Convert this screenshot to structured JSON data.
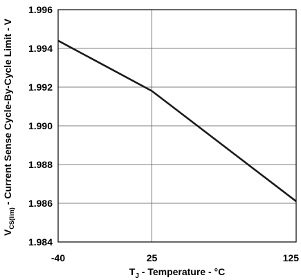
{
  "chart_data": {
    "type": "line",
    "xlabel": {
      "main": "T",
      "sub": "J",
      "rest": " - Temperature - °C"
    },
    "ylabel": {
      "main": "V",
      "sub": "CS(lim)",
      "rest": " - Current Sense Cycle-By-Cycle Limit - V"
    },
    "xlim": [
      -40,
      125
    ],
    "ylim": [
      1.984,
      1.996
    ],
    "x_ticks": [
      -40,
      25,
      125
    ],
    "x_tick_labels": [
      "-40",
      "25",
      "125"
    ],
    "y_ticks": [
      1.984,
      1.986,
      1.988,
      1.99,
      1.992,
      1.994,
      1.996
    ],
    "y_tick_labels": [
      "1.984",
      "1.986",
      "1.988",
      "1.990",
      "1.992",
      "1.994",
      "1.996"
    ],
    "grid": true,
    "series": [
      {
        "x": [
          -40,
          25,
          125
        ],
        "y": [
          1.9944,
          1.9918,
          1.9861
        ],
        "color": "#1a1a1a"
      }
    ]
  }
}
